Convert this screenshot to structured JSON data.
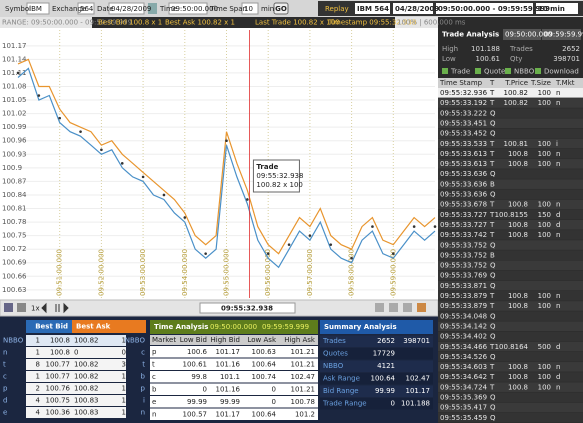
{
  "toolbar": {
    "symbol_label": "Symbol",
    "symbol": "IBM",
    "exchange_label": "Exchange",
    "exchange": "564",
    "date_label": "Date",
    "date": "04/28/2009",
    "time_label": "Time",
    "time": "09:50:00.000",
    "span_label": "Time Span",
    "span": "10",
    "span_unit": "min",
    "go": "GO",
    "replay": "Replay",
    "replay_symbol": "IBM 564",
    "replay_date": "04/28/2009",
    "replay_range": "09:50:00.000 - 09:59:59.999",
    "replay_span": "10 min"
  },
  "quote_bar": {
    "range": "RANGE: 09:50:00.000 - 09:59:59.999",
    "best_bid": "Best Bid 100.8 x 1",
    "best_ask": "Best Ask 100.82 x 1",
    "last_trade": "Last Trade 100.82 x 100",
    "timestamp": "Timestamp 09:55:32.938",
    "zoom": "100% | 600.000 ms"
  },
  "chart": {
    "type": "line",
    "xlim": [
      0,
      10
    ],
    "ylim": [
      100.612,
      101.205
    ],
    "yticks": [
      101.17,
      101.14,
      101.11,
      101.08,
      101.05,
      101.02,
      100.99,
      100.96,
      100.93,
      100.9,
      100.87,
      100.84,
      100.81,
      100.78,
      100.75,
      100.72,
      100.69,
      100.66,
      100.63
    ],
    "xticks": [
      {
        "value": 1,
        "label": "09:51:00.000"
      },
      {
        "value": 2,
        "label": "09:52:00.000"
      },
      {
        "value": 3,
        "label": "09:53:00.000"
      },
      {
        "value": 4,
        "label": "09:54:00.000"
      },
      {
        "value": 5,
        "label": "09:55:00.000"
      },
      {
        "value": 6,
        "label": "09:56:00.000"
      },
      {
        "value": 7,
        "label": "09:57:00.000"
      },
      {
        "value": 8,
        "label": "09:58:00.000"
      },
      {
        "value": 9,
        "label": "09:59:00.000"
      }
    ],
    "x": [
      0,
      0.25,
      0.5,
      0.75,
      1,
      1.25,
      1.5,
      1.75,
      2,
      2.25,
      2.5,
      2.75,
      3,
      3.25,
      3.5,
      3.75,
      4,
      4.25,
      4.5,
      4.75,
      5,
      5.25,
      5.5,
      5.75,
      6,
      6.25,
      6.5,
      6.75,
      7,
      7.25,
      7.5,
      7.75,
      8,
      8.25,
      8.5,
      8.75,
      9,
      9.25,
      9.5,
      9.75,
      10
    ],
    "series": [
      {
        "color": "#e8952e",
        "values": [
          101.13,
          101.14,
          101.08,
          101.08,
          101.03,
          101.0,
          100.99,
          100.98,
          100.95,
          100.96,
          100.93,
          100.91,
          100.89,
          100.87,
          100.85,
          100.83,
          100.8,
          100.75,
          100.73,
          100.75,
          100.98,
          100.91,
          100.85,
          100.77,
          100.73,
          100.71,
          100.75,
          100.79,
          100.77,
          100.81,
          100.75,
          100.73,
          100.72,
          100.77,
          100.79,
          100.74,
          100.73,
          100.76,
          100.79,
          100.77,
          100.79
        ]
      },
      {
        "color": "#4a90c8",
        "values": [
          101.1,
          101.12,
          101.05,
          101.06,
          101.0,
          100.98,
          100.97,
          100.95,
          100.93,
          100.94,
          100.9,
          100.88,
          100.87,
          100.84,
          100.83,
          100.8,
          100.78,
          100.72,
          100.7,
          100.72,
          100.95,
          100.88,
          100.82,
          100.74,
          100.7,
          100.68,
          100.72,
          100.76,
          100.74,
          100.78,
          100.72,
          100.7,
          100.69,
          100.74,
          100.76,
          100.71,
          100.7,
          100.73,
          100.76,
          100.74,
          100.76
        ]
      }
    ],
    "trades": {
      "color": "#333333",
      "x": [
        0,
        0.5,
        1,
        1.5,
        2,
        2.5,
        3,
        3.5,
        4,
        4.5,
        5,
        5.5,
        6,
        6.5,
        7,
        7.5,
        8,
        8.5,
        9,
        9.5,
        10
      ],
      "values": [
        101.11,
        101.06,
        101.01,
        100.98,
        100.94,
        100.91,
        100.88,
        100.84,
        100.79,
        100.71,
        100.96,
        100.83,
        100.71,
        100.73,
        100.75,
        100.73,
        100.7,
        100.77,
        100.71,
        100.77,
        100.77
      ]
    },
    "cursor": {
      "x": 5.55,
      "label": "Trade",
      "time": "09:55:32.938",
      "price": "100.82 x 100"
    }
  },
  "chart_controls": {
    "speed": "1x",
    "position": "09:55:32.938"
  },
  "bbo": {
    "bid_title": "Best Bid",
    "ask_title": "Best Ask",
    "rows": [
      [
        "NBBO",
        "1",
        "100.8",
        "100.82",
        "1",
        "NBBO"
      ],
      [
        "n",
        "1",
        "100.8",
        "0",
        "0",
        "c"
      ],
      [
        "t",
        "8",
        "100.77",
        "100.82",
        "3",
        "t"
      ],
      [
        "c",
        "1",
        "100.77",
        "100.82",
        "1",
        "b"
      ],
      [
        "p",
        "2",
        "100.76",
        "100.82",
        "1",
        "p"
      ],
      [
        "d",
        "4",
        "100.75",
        "100.83",
        "1",
        "i"
      ],
      [
        "e",
        "4",
        "100.36",
        "100.83",
        "1",
        "n"
      ]
    ]
  },
  "time_analysis": {
    "title": "Time Analysis",
    "start": "09:50:00.000",
    "end": "09:59:59.999",
    "columns": [
      "Market",
      "Low Bid",
      "High Bid",
      "Low Ask",
      "High Ask"
    ],
    "rows": [
      [
        "p",
        "100.6",
        "101.17",
        "100.63",
        "101.21"
      ],
      [
        "t",
        "100.61",
        "101.16",
        "100.64",
        "101.21"
      ],
      [
        "c",
        "99.8",
        "101.1",
        "100.74",
        "102.47"
      ],
      [
        "b",
        "0",
        "101.16",
        "0",
        "101.21"
      ],
      [
        "e",
        "99.99",
        "99.99",
        "0",
        "100.78"
      ],
      [
        "n",
        "100.57",
        "101.17",
        "100.64",
        "101.2"
      ]
    ]
  },
  "summary": {
    "title": "Summary Analysis",
    "rows": [
      [
        "Trades",
        "2652",
        "398701"
      ],
      [
        "Quotes",
        "17729"
      ],
      [
        "NBBO",
        "4121"
      ],
      [
        "Ask Range",
        "100.64",
        "102.47"
      ],
      [
        "Bid Range",
        "99.99",
        "101.17"
      ],
      [
        "Trade Range",
        "0",
        "101.188"
      ]
    ]
  },
  "trade_analysis": {
    "title": "Trade Analysis",
    "start": "09:50:00.000",
    "end": "09:59:59.999",
    "stats": [
      [
        "High",
        "101.188",
        "Trades",
        "2652"
      ],
      [
        "Low",
        "100.61",
        "Qty",
        "398701"
      ]
    ],
    "filters": [
      "Trade",
      "Quote",
      "NBBO",
      "Download"
    ],
    "columns": [
      "Time Stamp",
      "T",
      "T.Price",
      "T.Size",
      "T.Mkt"
    ],
    "rows": [
      [
        "09:55:32.936",
        "T",
        "100.82",
        "100",
        "n"
      ],
      [
        "09:55:33.192",
        "T",
        "100.82",
        "100",
        "n"
      ],
      [
        "09:55:33.222",
        "Q"
      ],
      [
        "09:55:33.451",
        "Q"
      ],
      [
        "09:55:33.452",
        "Q"
      ],
      [
        "09:55:33.533",
        "T",
        "100.81",
        "100",
        "i"
      ],
      [
        "09:55:33.613",
        "T",
        "100.8",
        "100",
        "n"
      ],
      [
        "09:55:33.613",
        "T",
        "100.8",
        "100",
        "n"
      ],
      [
        "09:55:33.636",
        "Q"
      ],
      [
        "09:55:33.636",
        "B"
      ],
      [
        "09:55:33.636",
        "Q"
      ],
      [
        "09:55:33.678",
        "T",
        "100.8",
        "100",
        "n"
      ],
      [
        "09:55:33.727",
        "T",
        "100.8155",
        "150",
        "d"
      ],
      [
        "09:55:33.727",
        "T",
        "100.8",
        "100",
        "d"
      ],
      [
        "09:55:33.742",
        "T",
        "100.8",
        "100",
        "n"
      ],
      [
        "09:55:33.752",
        "Q"
      ],
      [
        "09:55:33.752",
        "B"
      ],
      [
        "09:55:33.752",
        "Q"
      ],
      [
        "09:55:33.769",
        "Q"
      ],
      [
        "09:55:33.871",
        "Q"
      ],
      [
        "09:55:33.879",
        "T",
        "100.8",
        "100",
        "n"
      ],
      [
        "09:55:33.879",
        "T",
        "100.8",
        "100",
        "n"
      ],
      [
        "09:55:34.048",
        "Q"
      ],
      [
        "09:55:34.142",
        "Q"
      ],
      [
        "09:55:34.402",
        "Q"
      ],
      [
        "09:55:34.466",
        "T",
        "100.8164",
        "500",
        "d"
      ],
      [
        "09:55:34.526",
        "Q"
      ],
      [
        "09:55:34.603",
        "T",
        "100.8",
        "100",
        "n"
      ],
      [
        "09:55:34.642",
        "T",
        "100.8",
        "100",
        "d"
      ],
      [
        "09:55:34.724",
        "T",
        "100.8",
        "100",
        "n"
      ],
      [
        "09:55:35.369",
        "Q"
      ],
      [
        "09:55:35.417",
        "Q"
      ],
      [
        "09:55:35.459",
        "Q"
      ]
    ]
  }
}
